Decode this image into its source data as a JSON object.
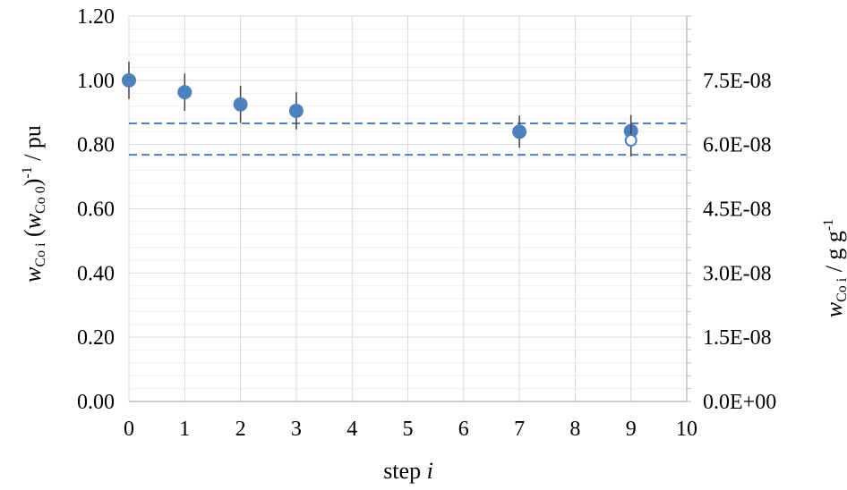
{
  "chart_data": {
    "type": "scatter",
    "title": "",
    "xlabel": "step i",
    "ylabel_left": "wCo i (wCo 0)-1 / pu",
    "ylabel_right": "wCo i / g g-1",
    "xlim": [
      0,
      10
    ],
    "ylim": [
      0.0,
      1.2
    ],
    "ylim_right": [
      0.0,
      9e-08
    ],
    "x_ticks": [
      "0",
      "1",
      "2",
      "3",
      "4",
      "5",
      "6",
      "7",
      "8",
      "9",
      "10"
    ],
    "y_ticks_left": [
      "0.00",
      "0.20",
      "0.40",
      "0.60",
      "0.80",
      "1.00",
      "1.20"
    ],
    "y_ticks_right": [
      "0.0E+00",
      "1.5E-08",
      "3.0E-08",
      "4.5E-08",
      "6.0E-08",
      "7.5E-08"
    ],
    "grid": true,
    "legend": "none",
    "series": [
      {
        "marker": "filled-circle",
        "color": "#4f81bd",
        "x": [
          0,
          1,
          2,
          3,
          7,
          9
        ],
        "y": [
          1.0,
          0.963,
          0.925,
          0.905,
          0.84,
          0.842
        ],
        "error": [
          0.058,
          0.058,
          0.058,
          0.058,
          0.05,
          0.05
        ]
      },
      {
        "marker": "open-circle",
        "color": "#4f81bd",
        "x": [
          9
        ],
        "y": [
          0.813
        ],
        "error": [
          0.05
        ]
      }
    ],
    "reference_lines": [
      {
        "style": "dashed",
        "color": "#4f81bd",
        "y": 0.866
      },
      {
        "style": "dashed",
        "color": "#4f81bd",
        "y": 0.768
      }
    ],
    "colors": {
      "marker": "#4f81bd",
      "grid": "#d9d9d9",
      "errorbar": "#404040",
      "axis": "#bfbfbf"
    }
  }
}
